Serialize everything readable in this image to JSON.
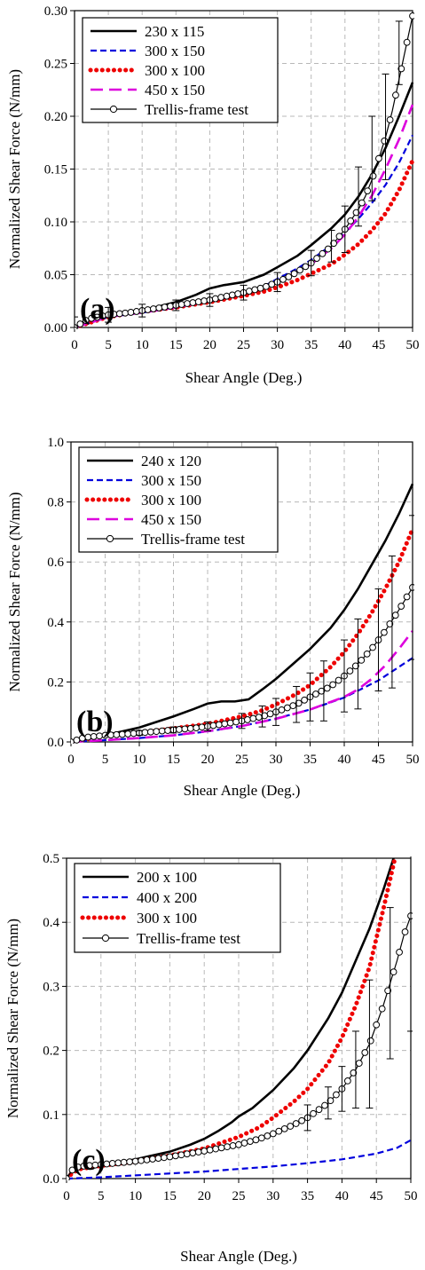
{
  "chart_data": [
    {
      "type": "line",
      "panel_label": "(a)",
      "xlabel": "Shear Angle (Deg.)",
      "ylabel": "Normalized Shear Force (N/mm)",
      "xlim": [
        0,
        50
      ],
      "ylim": [
        0,
        0.3
      ],
      "xticks": [
        0,
        5,
        10,
        15,
        20,
        25,
        30,
        35,
        40,
        45,
        50
      ],
      "yticks": [
        "0.00",
        "0.05",
        "0.10",
        "0.15",
        "0.20",
        "0.25",
        "0.30"
      ],
      "grid": true,
      "legend_position": "top-left",
      "series": [
        {
          "name": "230 x 115",
          "style": "solid",
          "color": "#000000",
          "x": [
            0,
            5,
            10,
            15,
            18,
            20,
            22,
            25,
            28,
            30,
            33,
            35,
            38,
            40,
            42,
            44,
            46,
            48,
            50
          ],
          "y": [
            0.0,
            0.01,
            0.016,
            0.024,
            0.031,
            0.037,
            0.04,
            0.043,
            0.05,
            0.057,
            0.068,
            0.078,
            0.094,
            0.107,
            0.124,
            0.145,
            0.17,
            0.2,
            0.232
          ]
        },
        {
          "name": "300 x 150",
          "style": "dash",
          "color": "#0000dd",
          "x": [
            0,
            5,
            10,
            15,
            20,
            25,
            28,
            30,
            33,
            35,
            38,
            40,
            42,
            44,
            46,
            48,
            50
          ],
          "y": [
            0.0,
            0.01,
            0.014,
            0.019,
            0.025,
            0.033,
            0.039,
            0.046,
            0.056,
            0.064,
            0.078,
            0.09,
            0.103,
            0.118,
            0.135,
            0.156,
            0.182
          ]
        },
        {
          "name": "300 x 100",
          "style": "dots",
          "color": "#ee0000",
          "x": [
            0,
            5,
            10,
            15,
            20,
            25,
            28,
            30,
            33,
            35,
            38,
            40,
            42,
            44,
            46,
            48,
            50
          ],
          "y": [
            0.0,
            0.01,
            0.015,
            0.019,
            0.024,
            0.03,
            0.034,
            0.038,
            0.045,
            0.051,
            0.06,
            0.069,
            0.079,
            0.092,
            0.108,
            0.13,
            0.158
          ]
        },
        {
          "name": "450 x 150",
          "style": "longdash",
          "color": "#dd00dd",
          "x": [
            0,
            5,
            10,
            15,
            20,
            25,
            30,
            35,
            38,
            40,
            42,
            44,
            46,
            48,
            50
          ],
          "y": [
            0.0,
            0.01,
            0.014,
            0.019,
            0.025,
            0.032,
            0.043,
            0.06,
            0.075,
            0.088,
            0.105,
            0.125,
            0.15,
            0.178,
            0.211
          ]
        },
        {
          "name": "Trellis-frame test",
          "style": "circle",
          "color": "#000000",
          "x": [
            0,
            2,
            5,
            8,
            10,
            12,
            15,
            18,
            20,
            22,
            25,
            28,
            30,
            32,
            35,
            38,
            40,
            42,
            43,
            44,
            45,
            46,
            47,
            48,
            49,
            50
          ],
          "y": [
            0.0,
            0.008,
            0.012,
            0.014,
            0.016,
            0.018,
            0.021,
            0.024,
            0.026,
            0.029,
            0.033,
            0.038,
            0.043,
            0.049,
            0.061,
            0.077,
            0.093,
            0.112,
            0.124,
            0.14,
            0.16,
            0.18,
            0.205,
            0.235,
            0.265,
            0.295
          ]
        }
      ],
      "error_bars": {
        "x": [
          0,
          5,
          10,
          15,
          20,
          25,
          30,
          35,
          38,
          40,
          42,
          44,
          46,
          48
        ],
        "y": [
          0.0,
          0.012,
          0.016,
          0.021,
          0.026,
          0.033,
          0.043,
          0.061,
          0.077,
          0.093,
          0.124,
          0.16,
          0.19,
          0.26
        ],
        "err": [
          0.01,
          0.007,
          0.006,
          0.005,
          0.006,
          0.007,
          0.009,
          0.012,
          0.015,
          0.022,
          0.028,
          0.04,
          0.05,
          0.03
        ]
      }
    },
    {
      "type": "line",
      "panel_label": "(b)",
      "xlabel": "Shear Angle (Deg.)",
      "ylabel": "Normalized Shear Force (N/mm)",
      "xlim": [
        0,
        50
      ],
      "ylim": [
        0,
        1.0
      ],
      "xticks": [
        0,
        5,
        10,
        15,
        20,
        25,
        30,
        35,
        40,
        45,
        50
      ],
      "yticks": [
        "0.0",
        "0.2",
        "0.4",
        "0.6",
        "0.8",
        "1.0"
      ],
      "grid": true,
      "legend_position": "top-left",
      "series": [
        {
          "name": "240 x 120",
          "style": "solid",
          "color": "#000000",
          "x": [
            0,
            5,
            10,
            15,
            18,
            20,
            22,
            24,
            26,
            28,
            30,
            33,
            35,
            38,
            40,
            42,
            44,
            46,
            48,
            50
          ],
          "y": [
            0.0,
            0.022,
            0.048,
            0.085,
            0.11,
            0.128,
            0.135,
            0.135,
            0.142,
            0.175,
            0.21,
            0.27,
            0.31,
            0.38,
            0.44,
            0.51,
            0.59,
            0.67,
            0.76,
            0.86
          ]
        },
        {
          "name": "300 x 150",
          "style": "dash",
          "color": "#0000dd",
          "x": [
            0,
            5,
            10,
            15,
            20,
            25,
            30,
            35,
            40,
            45,
            50
          ],
          "y": [
            0.0,
            0.006,
            0.013,
            0.022,
            0.035,
            0.053,
            0.078,
            0.108,
            0.148,
            0.205,
            0.28
          ]
        },
        {
          "name": "300 x 100",
          "style": "dots",
          "color": "#ee0000",
          "x": [
            0,
            5,
            10,
            15,
            20,
            25,
            28,
            30,
            33,
            35,
            38,
            40,
            42,
            44,
            46,
            48,
            50
          ],
          "y": [
            0.0,
            0.02,
            0.03,
            0.045,
            0.06,
            0.085,
            0.105,
            0.125,
            0.16,
            0.19,
            0.25,
            0.3,
            0.36,
            0.43,
            0.51,
            0.6,
            0.71
          ]
        },
        {
          "name": "450 x 150",
          "style": "longdash",
          "color": "#dd00dd",
          "x": [
            0,
            5,
            10,
            15,
            20,
            25,
            30,
            35,
            40,
            42,
            44,
            46,
            48,
            50
          ],
          "y": [
            0.0,
            0.006,
            0.013,
            0.022,
            0.036,
            0.053,
            0.077,
            0.108,
            0.15,
            0.175,
            0.21,
            0.255,
            0.31,
            0.37
          ]
        },
        {
          "name": "Trellis-frame test",
          "style": "circle",
          "color": "#000000",
          "x": [
            0,
            2,
            5,
            8,
            10,
            13,
            15,
            18,
            20,
            23,
            25,
            28,
            30,
            33,
            35,
            38,
            40,
            42,
            44,
            46,
            48,
            50
          ],
          "y": [
            0.0,
            0.015,
            0.022,
            0.026,
            0.03,
            0.036,
            0.04,
            0.046,
            0.052,
            0.062,
            0.07,
            0.085,
            0.1,
            0.125,
            0.15,
            0.185,
            0.22,
            0.26,
            0.31,
            0.37,
            0.44,
            0.515
          ]
        }
      ],
      "error_bars": {
        "x": [
          10,
          15,
          20,
          25,
          28,
          30,
          33,
          35,
          37,
          40,
          42,
          45,
          47,
          50
        ],
        "y": [
          0.03,
          0.04,
          0.052,
          0.07,
          0.085,
          0.1,
          0.125,
          0.15,
          0.17,
          0.22,
          0.26,
          0.34,
          0.4,
          0.515
        ],
        "err": [
          0.008,
          0.01,
          0.015,
          0.025,
          0.035,
          0.045,
          0.06,
          0.08,
          0.1,
          0.12,
          0.15,
          0.17,
          0.22,
          0.24
        ]
      }
    },
    {
      "type": "line",
      "panel_label": "(c)",
      "xlabel": "Shear Angle (Deg.)",
      "ylabel": "Normalized Shear Force (N/mm)",
      "xlim": [
        0,
        50
      ],
      "ylim": [
        0,
        0.5
      ],
      "xticks": [
        0,
        5,
        10,
        15,
        20,
        25,
        30,
        35,
        40,
        45,
        50
      ],
      "yticks": [
        "0.0",
        "0.1",
        "0.2",
        "0.3",
        "0.4",
        "0.5"
      ],
      "grid": true,
      "legend_position": "top-left",
      "series": [
        {
          "name": "200 x 100",
          "style": "solid",
          "color": "#000000",
          "x": [
            0,
            1,
            2,
            5,
            8,
            10,
            12,
            15,
            18,
            20,
            22,
            24,
            25,
            27,
            30,
            33,
            35,
            38,
            40,
            42,
            44,
            46,
            47.5
          ],
          "y": [
            0.0,
            0.015,
            0.018,
            0.022,
            0.026,
            0.03,
            0.035,
            0.042,
            0.053,
            0.062,
            0.074,
            0.088,
            0.097,
            0.11,
            0.138,
            0.172,
            0.2,
            0.25,
            0.29,
            0.34,
            0.39,
            0.45,
            0.5
          ]
        },
        {
          "name": "400 x 200",
          "style": "dash",
          "color": "#0000dd",
          "x": [
            0,
            5,
            10,
            15,
            20,
            25,
            30,
            35,
            40,
            45,
            48,
            50
          ],
          "y": [
            0.0,
            0.002,
            0.005,
            0.008,
            0.011,
            0.015,
            0.019,
            0.024,
            0.03,
            0.039,
            0.048,
            0.06
          ]
        },
        {
          "name": "300 x 100",
          "style": "dots",
          "color": "#ee0000",
          "x": [
            0,
            1,
            2,
            5,
            8,
            10,
            15,
            20,
            25,
            28,
            30,
            33,
            35,
            38,
            40,
            42,
            44,
            46,
            47.7
          ],
          "y": [
            0.0,
            0.01,
            0.015,
            0.02,
            0.024,
            0.027,
            0.036,
            0.047,
            0.065,
            0.08,
            0.095,
            0.12,
            0.14,
            0.18,
            0.22,
            0.27,
            0.33,
            0.42,
            0.5
          ]
        },
        {
          "name": "Trellis-frame test",
          "style": "circle",
          "color": "#000000",
          "x": [
            0,
            1,
            2,
            5,
            8,
            10,
            15,
            20,
            25,
            28,
            30,
            33,
            35,
            38,
            40,
            42,
            44,
            46,
            48,
            49,
            50
          ],
          "y": [
            0.0,
            0.016,
            0.019,
            0.022,
            0.025,
            0.027,
            0.034,
            0.043,
            0.053,
            0.062,
            0.07,
            0.084,
            0.095,
            0.118,
            0.14,
            0.17,
            0.21,
            0.27,
            0.34,
            0.38,
            0.41
          ]
        }
      ],
      "error_bars": {
        "x": [
          35,
          38,
          40,
          42,
          44,
          47,
          50
        ],
        "y": [
          0.095,
          0.118,
          0.14,
          0.17,
          0.21,
          0.305,
          0.41
        ],
        "err": [
          0.02,
          0.025,
          0.035,
          0.06,
          0.1,
          0.118,
          0.18
        ]
      }
    }
  ]
}
